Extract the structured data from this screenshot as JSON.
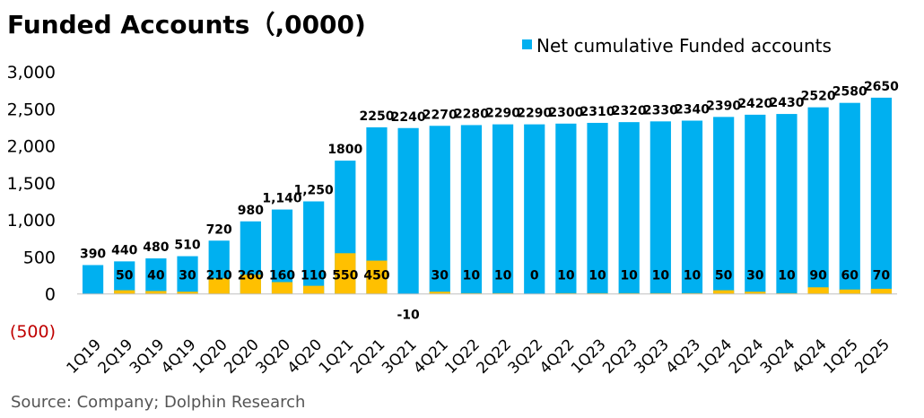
{
  "title": "Funded Accounts（,0000)",
  "source": "Source: Company; Dolphin Research",
  "colors": {
    "cumulative": "#00B0F0",
    "net_add": "#FFC000",
    "negative_tick": "#C00000",
    "axis": "#000000"
  },
  "chart_data": {
    "type": "bar",
    "categories": [
      "1Q19",
      "2Q19",
      "3Q19",
      "4Q19",
      "1Q20",
      "2Q20",
      "3Q20",
      "4Q20",
      "1Q21",
      "2Q21",
      "3Q21",
      "4Q21",
      "1Q22",
      "2Q22",
      "3Q22",
      "4Q22",
      "1Q23",
      "2Q23",
      "3Q23",
      "4Q23",
      "1Q24",
      "2Q24",
      "3Q24",
      "4Q24",
      "1Q25",
      "2Q25"
    ],
    "series": [
      {
        "name": "Net cumulative Funded accounts",
        "values": [
          390,
          440,
          480,
          510,
          720,
          980,
          1140,
          1250,
          1800,
          2250,
          2240,
          2270,
          2280,
          2290,
          2290,
          2300,
          2310,
          2320,
          2330,
          2340,
          2390,
          2420,
          2430,
          2520,
          2580,
          2650
        ],
        "labels": [
          "390",
          "440",
          "480",
          "510",
          "720",
          "980",
          "1,140",
          "1,250",
          "1800",
          "2250",
          "2240",
          "2270",
          "2280",
          "2290",
          "2290",
          "2300",
          "2310",
          "2320",
          "2330",
          "2340",
          "2390",
          "2420",
          "2430",
          "2520",
          "2580",
          "2650"
        ]
      },
      {
        "values": [
          null,
          50,
          40,
          30,
          210,
          260,
          160,
          110,
          550,
          450,
          -10,
          30,
          10,
          10,
          0,
          10,
          10,
          10,
          10,
          10,
          50,
          30,
          10,
          90,
          60,
          70
        ],
        "labels": [
          "",
          "50",
          "40",
          "30",
          "210",
          "260",
          "160",
          "110",
          "550",
          "450",
          "-10",
          "30",
          "10",
          "10",
          "0",
          "10",
          "10",
          "10",
          "10",
          "10",
          "50",
          "30",
          "10",
          "90",
          "60",
          "70"
        ]
      }
    ],
    "yticks": [
      3000,
      2500,
      2000,
      1500,
      1000,
      500,
      0,
      -500
    ],
    "ytick_labels": [
      "3,000",
      "2,500",
      "2,000",
      "1,500",
      "1,000",
      "500",
      "0",
      "(500)"
    ],
    "ylim": [
      -500,
      3000
    ],
    "legend": "top-right"
  }
}
